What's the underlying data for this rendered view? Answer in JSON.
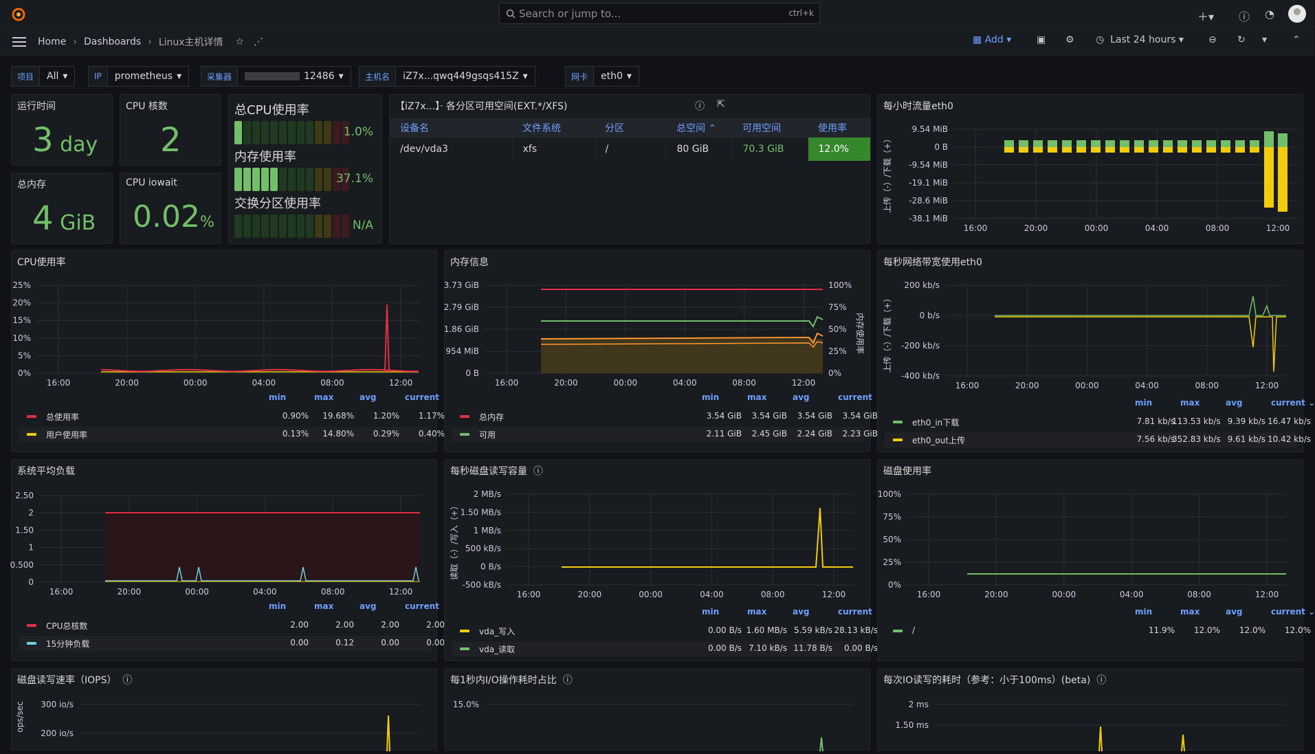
{
  "topbar": {
    "search_placeholder": "Search or jump to...",
    "search_shortcut": "ctrl+k"
  },
  "nav": {
    "crumbs": [
      "Home",
      "Dashboards",
      "Linux主机详情"
    ],
    "add_label": "Add",
    "time_range": "Last 24 hours"
  },
  "filters": [
    {
      "label": "项目",
      "value": "All"
    },
    {
      "label": "IP",
      "value": "prometheus"
    },
    {
      "label": "采集器",
      "value": "12486"
    },
    {
      "label": "主机名",
      "value": "iZ7x...qwq449gsqs415Z"
    },
    {
      "label": "网卡",
      "value": "eth0"
    }
  ],
  "stats": {
    "uptime": {
      "title": "运行时间",
      "value": "3",
      "unit": "day"
    },
    "cpu_cores": {
      "title": "CPU 核数",
      "value": "2"
    },
    "total_mem": {
      "title": "总内存",
      "value": "4",
      "unit": "GiB"
    },
    "iowait": {
      "title": "CPU iowait",
      "value": "0.02",
      "unit": "%"
    }
  },
  "gauges": [
    {
      "title": "总CPU使用率",
      "value": "1.0%",
      "level": 0.01
    },
    {
      "title": "内存使用率",
      "value": "37.1%",
      "level": 0.371
    },
    {
      "title": "交换分区使用率",
      "value": "N/A",
      "level": 0
    }
  ],
  "fs_panel": {
    "title": "【iZ7x...】· 各分区可用空间(EXT.*/XFS)",
    "columns": [
      "设备名",
      "文件系统",
      "分区",
      "总空间",
      "可用空间",
      "使用率"
    ],
    "row": [
      "/dev/vda3",
      "xfs",
      "/",
      "80 GiB",
      "70.3 GiB",
      "12.0%"
    ]
  },
  "panels": {
    "hourly_traffic": {
      "title": "每小时流量eth0",
      "yticks": [
        "9.54 MiB",
        "0 B",
        "-9.54 MiB",
        "-19.1 MiB",
        "-28.6 MiB",
        "-38.1 MiB"
      ],
      "xticks": [
        "16:00",
        "20:00",
        "00:00",
        "04:00",
        "08:00",
        "12:00"
      ],
      "yaxis_label": "上传（-）/下载（+）"
    },
    "cpu_usage": {
      "title": "CPU使用率",
      "yticks": [
        "25%",
        "20%",
        "15%",
        "10%",
        "5%",
        "0%"
      ],
      "xticks": [
        "16:00",
        "20:00",
        "00:00",
        "04:00",
        "08:00",
        "12:00"
      ],
      "legend_hdr": [
        "min",
        "max",
        "avg",
        "current"
      ],
      "series": [
        {
          "name": "总使用率",
          "color": "#e02f44",
          "vals": [
            "0.90%",
            "19.68%",
            "1.20%",
            "1.17%"
          ]
        },
        {
          "name": "用户使用率",
          "color": "#f2cc0c",
          "vals": [
            "0.13%",
            "14.80%",
            "0.29%",
            "0.40%"
          ]
        }
      ]
    },
    "memory": {
      "title": "内存信息",
      "yticks": [
        "3.73 GiB",
        "2.79 GiB",
        "1.86 GiB",
        "954 MiB",
        "0 B"
      ],
      "y2ticks": [
        "100%",
        "75%",
        "50%",
        "25%",
        "0%"
      ],
      "y2label": "内存使用率",
      "xticks": [
        "16:00",
        "20:00",
        "00:00",
        "04:00",
        "08:00",
        "12:00"
      ],
      "legend_hdr": [
        "min",
        "max",
        "avg",
        "current"
      ],
      "series": [
        {
          "name": "总内存",
          "color": "#e02f44",
          "vals": [
            "3.54 GiB",
            "3.54 GiB",
            "3.54 GiB",
            "3.54 GiB"
          ]
        },
        {
          "name": "可用",
          "color": "#73bf69",
          "vals": [
            "2.11 GiB",
            "2.45 GiB",
            "2.24 GiB",
            "2.23 GiB"
          ]
        }
      ]
    },
    "net_bw": {
      "title": "每秒网络带宽使用eth0",
      "yticks": [
        "200 kb/s",
        "0 b/s",
        "-200 kb/s",
        "-400 kb/s"
      ],
      "yaxis_label": "上传（-）/下载（+）",
      "xticks": [
        "16:00",
        "20:00",
        "00:00",
        "04:00",
        "08:00",
        "12:00"
      ],
      "legend_hdr": [
        "min",
        "max",
        "avg",
        "current"
      ],
      "series": [
        {
          "name": "eth0_in下载",
          "color": "#73bf69",
          "vals": [
            "7.81 kb/s",
            "113.53 kb/s",
            "9.39 kb/s",
            "16.47 kb/s"
          ]
        },
        {
          "name": "eth0_out上传",
          "color": "#f2cc0c",
          "vals": [
            "7.56 kb/s",
            "352.83 kb/s",
            "9.61 kb/s",
            "10.42 kb/s"
          ]
        }
      ]
    },
    "load": {
      "title": "系统平均负载",
      "yticks": [
        "2.50",
        "2",
        "1.50",
        "1",
        "0.500",
        "0"
      ],
      "xticks": [
        "16:00",
        "20:00",
        "00:00",
        "04:00",
        "08:00",
        "12:00"
      ],
      "legend_hdr": [
        "min",
        "max",
        "avg",
        "current"
      ],
      "series": [
        {
          "name": "CPU总核数",
          "color": "#e02f44",
          "vals": [
            "2.00",
            "2.00",
            "2.00",
            "2.00"
          ]
        },
        {
          "name": "15分钟负载",
          "color": "#6ed0e0",
          "vals": [
            "0.00",
            "0.12",
            "0.00",
            "0.00"
          ]
        }
      ]
    },
    "disk_rw": {
      "title": "每秒磁盘读写容量",
      "yticks": [
        "2 MB/s",
        "1.50 MB/s",
        "1 MB/s",
        "500 kB/s",
        "0 B/s",
        "-500 kB/s"
      ],
      "yaxis_label": "读取（-）/写入（+）",
      "xticks": [
        "16:00",
        "20:00",
        "00:00",
        "04:00",
        "08:00",
        "12:00"
      ],
      "legend_hdr": [
        "min",
        "max",
        "avg",
        "current"
      ],
      "series": [
        {
          "name": "vda_写入",
          "color": "#f2cc0c",
          "vals": [
            "0.00 B/s",
            "1.60 MB/s",
            "5.59 kB/s",
            "28.13 kB/s"
          ]
        },
        {
          "name": "vda_读取",
          "color": "#73bf69",
          "vals": [
            "0.00 B/s",
            "7.10 kB/s",
            "11.78 B/s",
            "0.00 B/s"
          ]
        }
      ]
    },
    "disk_usage": {
      "title": "磁盘使用率",
      "yticks": [
        "100%",
        "75%",
        "50%",
        "25%",
        "0%"
      ],
      "xticks": [
        "16:00",
        "20:00",
        "00:00",
        "04:00",
        "08:00",
        "12:00"
      ],
      "legend_hdr": [
        "min",
        "max",
        "avg",
        "current"
      ],
      "series": [
        {
          "name": "/",
          "color": "#73bf69",
          "vals": [
            "11.9%",
            "12.0%",
            "12.0%",
            "12.0%"
          ]
        }
      ]
    },
    "iops": {
      "title": "磁盘读写速率（IOPS）",
      "yticks": [
        "300 io/s",
        "200 io/s"
      ],
      "yaxis_label": "ops/sec"
    },
    "io_time": {
      "title": "每1秒内I/O操作耗时占比",
      "yticks": [
        "15.0%"
      ]
    },
    "io_latency": {
      "title": "每次IO读写的耗时（参考：小于100ms）(beta)",
      "yticks": [
        "2 ms",
        "1.50 ms"
      ]
    }
  }
}
